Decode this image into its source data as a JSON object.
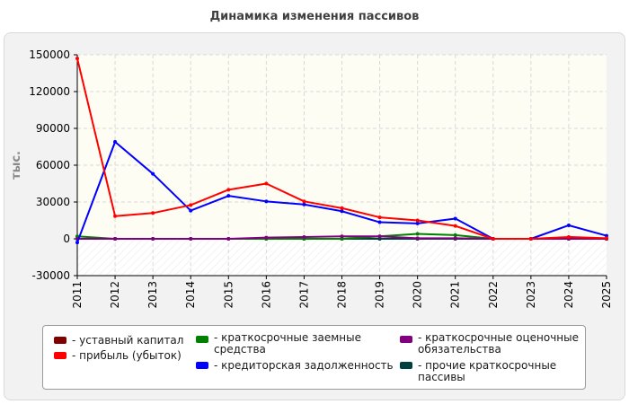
{
  "title": "Динамика изменения пассивов",
  "chart_data": {
    "type": "line",
    "ylabel": "тыс.",
    "ylim": [
      -30000,
      150000
    ],
    "yticks": [
      -30000,
      0,
      30000,
      60000,
      90000,
      120000,
      150000
    ],
    "x": [
      "2011",
      "2012",
      "2013",
      "2014",
      "2015",
      "2016",
      "2017",
      "2018",
      "2019",
      "2020",
      "2021",
      "2022",
      "2023",
      "2024",
      "2025"
    ],
    "series": [
      {
        "name": "- уставный капитал",
        "color": "#800000",
        "values": [
          0,
          0,
          0,
          0,
          0,
          0,
          0,
          0,
          0,
          0,
          0,
          0,
          0,
          0,
          0
        ]
      },
      {
        "name": "- прибыль (убыток)",
        "color": "#ff0000",
        "values": [
          147000,
          18500,
          21000,
          27500,
          40000,
          45000,
          30500,
          25000,
          17500,
          15000,
          10500,
          0,
          0,
          1500,
          500
        ]
      },
      {
        "name": "- краткосрочные заемные средства",
        "color": "#008000",
        "values": [
          2000,
          0,
          0,
          0,
          0,
          0,
          0,
          0,
          2000,
          4000,
          3000,
          0,
          0,
          0,
          0
        ]
      },
      {
        "name": "- кредиторская задолженность",
        "color": "#0000ff",
        "values": [
          -3000,
          79000,
          53000,
          23000,
          35000,
          30500,
          28000,
          22500,
          13500,
          12500,
          16500,
          0,
          0,
          11000,
          2500
        ]
      },
      {
        "name": "- краткосрочные оценочные обязательства",
        "color": "#800080",
        "values": [
          0,
          0,
          0,
          0,
          0,
          1000,
          1500,
          2000,
          2000,
          500,
          500,
          0,
          0,
          0,
          0
        ]
      },
      {
        "name": "- прочие краткосрочные пассивы",
        "color": "#004040",
        "values": [
          0,
          0,
          0,
          0,
          0,
          0,
          0,
          0,
          0,
          0,
          0,
          0,
          0,
          0,
          0
        ]
      }
    ],
    "legend_position": "bottom",
    "grid": true
  },
  "legend": [
    {
      "label": "- уставный капитал",
      "color": "#800000"
    },
    {
      "label": "- прибыль (убыток)",
      "color": "#ff0000"
    },
    {
      "label": "- краткосрочные заемные средства",
      "color": "#008000"
    },
    {
      "label": "- кредиторская задолженность",
      "color": "#0000ff"
    },
    {
      "label": "- краткосрочные оценочные обязательства",
      "color": "#800080"
    },
    {
      "label": "- прочие краткосрочные пассивы",
      "color": "#004040"
    }
  ]
}
